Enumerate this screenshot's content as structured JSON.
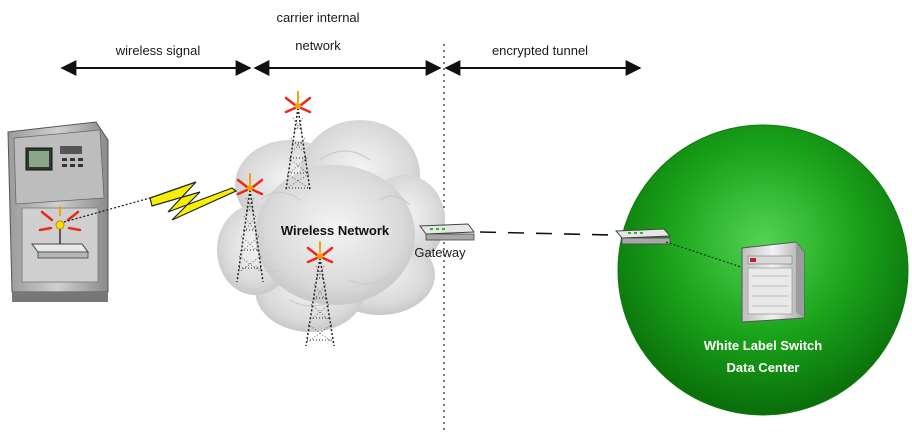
{
  "segments": {
    "wireless_signal": "wireless signal",
    "carrier_internal_line1": "carrier internal",
    "carrier_internal_line2": "network",
    "encrypted_tunnel": "encrypted tunnel"
  },
  "nodes": {
    "wireless_network": "Wireless Network",
    "gateway": "Gateway",
    "datacenter_line1": "White Label Switch",
    "datacenter_line2": "Data Center"
  },
  "icons": {
    "terminal": "atm-terminal-icon",
    "modem": "wireless-modem-icon",
    "bolt": "lightning-bolt-icon",
    "tower": "cell-tower-icon",
    "cloud": "cloud-icon",
    "gateway": "gateway-router-icon",
    "switch": "network-switch-icon",
    "server": "server-rack-icon"
  },
  "colors": {
    "datacenter_green": "#1aa31a",
    "bolt_yellow": "#f4f000",
    "antenna_red": "#e82a1a",
    "antenna_orange": "#f5a300"
  }
}
